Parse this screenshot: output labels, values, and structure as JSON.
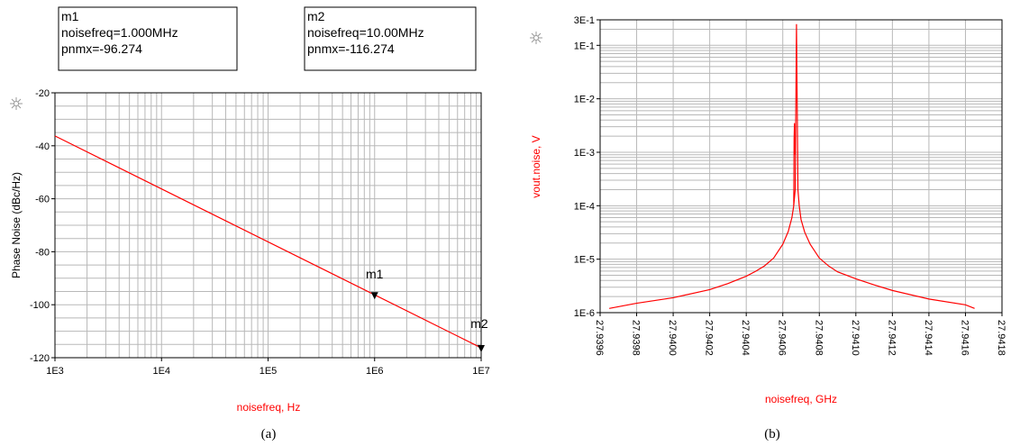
{
  "figure": {
    "captions": [
      "(a)",
      "(b)"
    ]
  },
  "chart_data": [
    {
      "type": "line",
      "panel": "(a)",
      "xlabel": "noisefreq, Hz",
      "ylabel": "Phase Noise (dBc/Hz)",
      "xscale": "log",
      "xlim": [
        1000,
        10000000
      ],
      "ylim": [
        -120,
        -20
      ],
      "x_ticks": [
        1000,
        10000,
        100000,
        1000000,
        10000000
      ],
      "x_tick_labels": [
        "1E3",
        "1E4",
        "1E5",
        "1E6",
        "1E7"
      ],
      "y_ticks": [
        -20,
        -40,
        -60,
        -80,
        -100,
        -120
      ],
      "y_tick_labels": [
        "-20",
        "-40",
        "-60",
        "-80",
        "-100",
        "-120"
      ],
      "grid": true,
      "series": [
        {
          "x": [
            1000,
            10000000
          ],
          "y": [
            -36.274,
            -116.274
          ],
          "color": "#ff0000"
        }
      ],
      "markers": [
        {
          "name": "m1",
          "x": 1000000,
          "y": -96.274,
          "lines": [
            "m1",
            "noisefreq=1.000MHz",
            "pnmx=-96.274"
          ]
        },
        {
          "name": "m2",
          "x": 10000000,
          "y": -116.274,
          "lines": [
            "m2",
            "noisefreq=10.00MHz",
            "pnmx=-116.274"
          ]
        }
      ]
    },
    {
      "type": "line",
      "panel": "(b)",
      "xlabel": "noisefreq, GHz",
      "ylabel": "vout.noise, V",
      "yscale": "log",
      "xlim": [
        27.9396,
        27.9418
      ],
      "ylim": [
        1e-06,
        0.3
      ],
      "x_ticks": [
        27.9396,
        27.9398,
        27.94,
        27.9402,
        27.9404,
        27.9406,
        27.9408,
        27.941,
        27.9412,
        27.9414,
        27.9416,
        27.9418
      ],
      "x_tick_labels": [
        "27.9396",
        "27.9398",
        "27.9400",
        "27.9402",
        "27.9404",
        "27.9406",
        "27.9408",
        "27.9410",
        "27.9412",
        "27.9414",
        "27.9416",
        "27.9418"
      ],
      "y_ticks": [
        1e-06,
        1e-05,
        0.0001,
        0.001,
        0.01,
        0.1,
        0.3
      ],
      "y_tick_labels": [
        "1E-6",
        "1E-5",
        "1E-4",
        "1E-3",
        "1E-2",
        "1E-1",
        "3E-1"
      ],
      "grid": true,
      "series": [
        {
          "color": "#ff0000",
          "x": [
            27.93965,
            27.9398,
            27.94,
            27.9402,
            27.9403,
            27.9404,
            27.94045,
            27.9405,
            27.94055,
            27.9406,
            27.94063,
            27.94065,
            27.94066,
            27.940668,
            27.940675,
            27.940683,
            27.94069,
            27.9407,
            27.94072,
            27.94075,
            27.9408,
            27.94085,
            27.9409,
            27.941,
            27.9411,
            27.9412,
            27.9414,
            27.9416,
            27.94165
          ],
          "y": [
            1.2e-06,
            1.5e-06,
            1.9e-06,
            2.7e-06,
            3.5e-06,
            4.8e-06,
            5.9e-06,
            7.5e-06,
            1.05e-05,
            1.9e-05,
            3.3e-05,
            6e-05,
            0.0001,
            0.0002,
            0.25,
            0.0002,
            0.0001,
            5.5e-05,
            3.2e-05,
            1.9e-05,
            1.05e-05,
            7.5e-06,
            5.8e-06,
            4.3e-06,
            3.3e-06,
            2.6e-06,
            1.8e-06,
            1.4e-06,
            1.2e-06
          ]
        },
        {
          "color": "#ff0000",
          "x": [
            27.94066,
            27.940662,
            27.940664,
            27.940666
          ],
          "y": [
            0.0001,
            0.0018,
            0.0035,
            0.0009
          ]
        }
      ]
    }
  ]
}
